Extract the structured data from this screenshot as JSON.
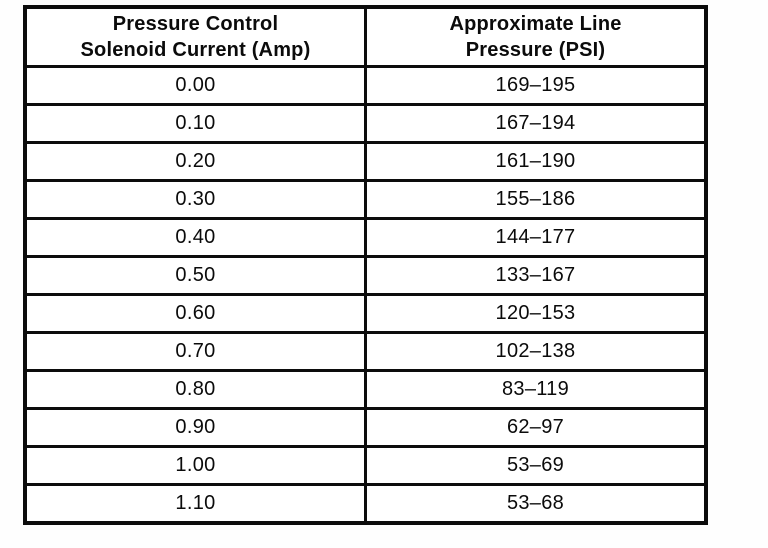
{
  "page": {
    "background_color": "#ffffff",
    "ink_color": "#0c0c0c"
  },
  "table": {
    "header": {
      "current": {
        "line1": "Pressure Control",
        "line2": "Solenoid Current (Amp)"
      },
      "pressure": {
        "line1": "Approximate Line",
        "line2": "Pressure (PSI)"
      }
    },
    "rows": [
      {
        "current": "0.00",
        "pressure": "169–195"
      },
      {
        "current": "0.10",
        "pressure": "167–194"
      },
      {
        "current": "0.20",
        "pressure": "161–190"
      },
      {
        "current": "0.30",
        "pressure": "155–186"
      },
      {
        "current": "0.40",
        "pressure": "144–177"
      },
      {
        "current": "0.50",
        "pressure": "133–167"
      },
      {
        "current": "0.60",
        "pressure": "120–153"
      },
      {
        "current": "0.70",
        "pressure": "102–138"
      },
      {
        "current": "0.80",
        "pressure": "83–119"
      },
      {
        "current": "0.90",
        "pressure": "62–97"
      },
      {
        "current": "1.00",
        "pressure": "53–69"
      },
      {
        "current": "1.10",
        "pressure": "53–68"
      }
    ]
  }
}
